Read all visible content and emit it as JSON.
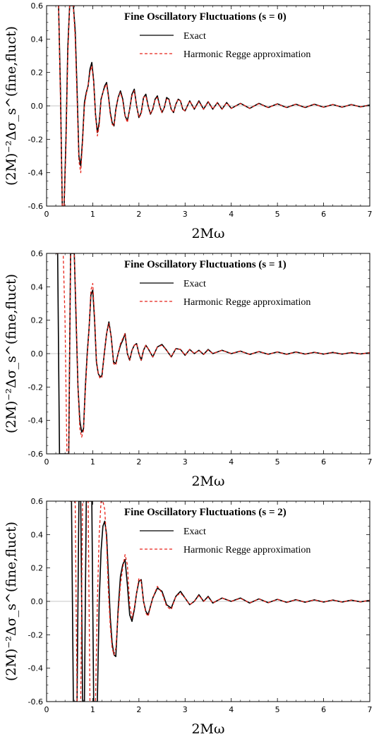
{
  "chart_data": [
    {
      "type": "line",
      "title": "Fine Oscillatory Fluctuations (s = 0)",
      "xlabel": "2Mω",
      "ylabel": "(2M)⁻²Δσ_s^(fine,fluct)",
      "xlim": [
        0,
        7
      ],
      "ylim": [
        -0.6,
        0.6
      ],
      "xticks": [
        "0",
        "1",
        "2",
        "3",
        "4",
        "5",
        "6",
        "7"
      ],
      "yticks": [
        "-0.6",
        "-0.4",
        "-0.2",
        "0.0",
        "0.2",
        "0.4",
        "0.6"
      ],
      "legend_position": "top-right",
      "series": [
        {
          "name": "Exact",
          "color": "#000000",
          "dashed": false,
          "x": [
            0.26,
            0.3,
            0.34,
            0.38,
            0.42,
            0.46,
            0.5,
            0.54,
            0.58,
            0.62,
            0.66,
            0.7,
            0.74,
            0.78,
            0.82,
            0.86,
            0.9,
            0.94,
            0.98,
            1.02,
            1.06,
            1.1,
            1.14,
            1.18,
            1.22,
            1.26,
            1.3,
            1.34,
            1.38,
            1.42,
            1.46,
            1.5,
            1.55,
            1.6,
            1.65,
            1.7,
            1.75,
            1.8,
            1.85,
            1.9,
            1.95,
            2.0,
            2.05,
            2.1,
            2.15,
            2.2,
            2.25,
            2.3,
            2.35,
            2.4,
            2.45,
            2.5,
            2.55,
            2.6,
            2.65,
            2.7,
            2.75,
            2.8,
            2.85,
            2.9,
            2.95,
            3.0,
            3.1,
            3.2,
            3.3,
            3.4,
            3.5,
            3.6,
            3.7,
            3.8,
            3.9,
            4.0,
            4.2,
            4.4,
            4.6,
            4.8,
            5.0,
            5.2,
            5.4,
            5.6,
            5.8,
            6.0,
            6.2,
            6.4,
            6.6,
            6.8,
            7.0
          ],
          "y": [
            0.6,
            0.1,
            -0.6,
            -0.6,
            -0.2,
            0.35,
            0.6,
            0.6,
            0.6,
            0.45,
            0.1,
            -0.3,
            -0.36,
            -0.2,
            0.02,
            0.08,
            0.12,
            0.22,
            0.26,
            0.15,
            -0.05,
            -0.16,
            -0.1,
            0.04,
            0.08,
            0.12,
            0.14,
            0.06,
            -0.04,
            -0.1,
            -0.12,
            -0.02,
            0.05,
            0.09,
            0.04,
            -0.06,
            -0.09,
            -0.02,
            0.07,
            0.1,
            0.0,
            -0.07,
            -0.04,
            0.05,
            0.07,
            0.0,
            -0.05,
            -0.02,
            0.04,
            0.06,
            0.0,
            -0.04,
            -0.01,
            0.05,
            0.04,
            -0.02,
            -0.04,
            0.01,
            0.04,
            0.03,
            -0.02,
            -0.03,
            0.03,
            -0.02,
            0.03,
            -0.02,
            0.025,
            -0.02,
            0.02,
            -0.02,
            0.02,
            -0.015,
            0.015,
            -0.015,
            0.015,
            -0.01,
            0.012,
            -0.01,
            0.01,
            -0.01,
            0.01,
            -0.008,
            0.008,
            -0.008,
            0.008,
            -0.006,
            0.005
          ]
        },
        {
          "name": "Harmonic Regge approximation",
          "color": "#e8231a",
          "dashed": true,
          "x": [
            0.26,
            0.3,
            0.34,
            0.38,
            0.42,
            0.46,
            0.5,
            0.54,
            0.58,
            0.62,
            0.66,
            0.7,
            0.74,
            0.78,
            0.82,
            0.86,
            0.9,
            0.94,
            0.98,
            1.02,
            1.06,
            1.1,
            1.14,
            1.18,
            1.22,
            1.26,
            1.3,
            1.34,
            1.38,
            1.42,
            1.46,
            1.5,
            1.55,
            1.6,
            1.65,
            1.7,
            1.75,
            1.8,
            1.85,
            1.9,
            1.95,
            2.0,
            2.05,
            2.1,
            2.15,
            2.2,
            2.25,
            2.3,
            2.35,
            2.4,
            2.45,
            2.5,
            2.55,
            2.6,
            2.65,
            2.7,
            2.75,
            2.8,
            2.85,
            2.9,
            2.95,
            3.0,
            3.1,
            3.2,
            3.3,
            3.4,
            3.5,
            3.6,
            3.7,
            3.8,
            3.9,
            4.0,
            4.2,
            4.4,
            4.6,
            4.8,
            5.0,
            5.2,
            5.4,
            5.6,
            5.8,
            6.0,
            6.2,
            6.4,
            6.6,
            6.8,
            7.0
          ],
          "y": [
            0.6,
            0.05,
            -0.6,
            -0.6,
            -0.25,
            0.3,
            0.6,
            0.6,
            0.6,
            0.4,
            0.05,
            -0.33,
            -0.4,
            -0.22,
            0.0,
            0.07,
            0.12,
            0.2,
            0.24,
            0.14,
            -0.06,
            -0.18,
            -0.12,
            0.03,
            0.08,
            0.11,
            0.13,
            0.05,
            -0.05,
            -0.11,
            -0.12,
            -0.03,
            0.05,
            0.08,
            0.03,
            -0.06,
            -0.1,
            -0.02,
            0.06,
            0.09,
            0.0,
            -0.07,
            -0.05,
            0.05,
            0.06,
            0.0,
            -0.05,
            -0.02,
            0.04,
            0.05,
            0.0,
            -0.04,
            -0.01,
            0.04,
            0.04,
            -0.02,
            -0.04,
            0.01,
            0.04,
            0.03,
            -0.02,
            -0.03,
            0.03,
            -0.02,
            0.025,
            -0.02,
            0.025,
            -0.02,
            0.02,
            -0.02,
            0.018,
            -0.015,
            0.014,
            -0.014,
            0.013,
            -0.01,
            0.011,
            -0.01,
            0.01,
            -0.009,
            0.009,
            -0.008,
            0.008,
            -0.007,
            0.007,
            -0.006,
            0.005
          ]
        }
      ]
    },
    {
      "type": "line",
      "title": "Fine Oscillatory Fluctuations (s = 1)",
      "xlabel": "2Mω",
      "ylabel": "(2M)⁻²Δσ_s^(fine,fluct)",
      "xlim": [
        0,
        7
      ],
      "ylim": [
        -0.6,
        0.6
      ],
      "xticks": [
        "0",
        "1",
        "2",
        "3",
        "4",
        "5",
        "6",
        "7"
      ],
      "yticks": [
        "-0.6",
        "-0.4",
        "-0.2",
        "0.0",
        "0.2",
        "0.4",
        "0.6"
      ],
      "legend_position": "top-right",
      "series": [
        {
          "name": "Exact",
          "color": "#000000",
          "dashed": false,
          "x": [
            0.2,
            0.24,
            0.28,
            0.32,
            0.36,
            0.4,
            0.44,
            0.48,
            0.52,
            0.56,
            0.6,
            0.64,
            0.68,
            0.72,
            0.76,
            0.8,
            0.84,
            0.88,
            0.92,
            0.96,
            1.0,
            1.04,
            1.08,
            1.12,
            1.16,
            1.2,
            1.25,
            1.3,
            1.35,
            1.4,
            1.45,
            1.5,
            1.55,
            1.6,
            1.65,
            1.7,
            1.75,
            1.8,
            1.85,
            1.9,
            1.95,
            2.0,
            2.05,
            2.1,
            2.15,
            2.2,
            2.3,
            2.4,
            2.5,
            2.6,
            2.7,
            2.8,
            2.9,
            3.0,
            3.1,
            3.2,
            3.3,
            3.4,
            3.5,
            3.6,
            3.8,
            4.0,
            4.2,
            4.4,
            4.6,
            4.8,
            5.0,
            5.2,
            5.4,
            5.6,
            5.8,
            6.0,
            6.2,
            6.4,
            6.6,
            6.8,
            7.0
          ],
          "y": [
            0.6,
            0.6,
            -0.6,
            -0.6,
            -0.6,
            -0.6,
            -0.6,
            -0.6,
            0.6,
            0.6,
            0.6,
            0.2,
            -0.2,
            -0.4,
            -0.47,
            -0.45,
            -0.2,
            0.0,
            0.15,
            0.35,
            0.38,
            0.2,
            -0.05,
            -0.12,
            -0.14,
            -0.13,
            0.0,
            0.12,
            0.19,
            0.1,
            -0.05,
            -0.06,
            0.0,
            0.05,
            0.08,
            0.12,
            0.0,
            -0.04,
            0.02,
            0.05,
            0.06,
            0.0,
            -0.04,
            0.02,
            0.05,
            0.03,
            -0.02,
            0.04,
            0.055,
            0.02,
            -0.02,
            0.03,
            0.025,
            -0.01,
            0.025,
            0.0,
            0.02,
            -0.005,
            0.025,
            0.0,
            0.02,
            0.0,
            0.015,
            -0.005,
            0.012,
            -0.004,
            0.01,
            -0.004,
            0.01,
            -0.003,
            0.008,
            -0.003,
            0.007,
            -0.003,
            0.006,
            -0.002,
            0.005
          ]
        },
        {
          "name": "Harmonic Regge approximation",
          "color": "#e8231a",
          "dashed": true,
          "x": [
            0.2,
            0.24,
            0.28,
            0.32,
            0.36,
            0.4,
            0.44,
            0.48,
            0.52,
            0.56,
            0.6,
            0.64,
            0.68,
            0.72,
            0.76,
            0.8,
            0.84,
            0.88,
            0.92,
            0.96,
            1.0,
            1.04,
            1.08,
            1.12,
            1.16,
            1.2,
            1.25,
            1.3,
            1.35,
            1.4,
            1.45,
            1.5,
            1.55,
            1.6,
            1.65,
            1.7,
            1.75,
            1.8,
            1.85,
            1.9,
            1.95,
            2.0,
            2.05,
            2.1,
            2.15,
            2.2,
            2.3,
            2.4,
            2.5,
            2.6,
            2.7,
            2.8,
            2.9,
            3.0,
            3.1,
            3.2,
            3.3,
            3.4,
            3.5,
            3.6,
            3.8,
            4.0,
            4.2,
            4.4,
            4.6,
            4.8,
            5.0,
            5.2,
            5.4,
            5.6,
            5.8,
            6.0,
            6.2,
            6.4,
            6.6,
            6.8,
            7.0
          ],
          "y": [
            0.6,
            0.6,
            0.6,
            0.6,
            0.6,
            0.2,
            -0.6,
            -0.6,
            0.6,
            0.6,
            0.6,
            0.25,
            -0.2,
            -0.45,
            -0.5,
            -0.46,
            -0.22,
            -0.02,
            0.14,
            0.38,
            0.42,
            0.22,
            -0.04,
            -0.12,
            -0.15,
            -0.14,
            0.0,
            0.12,
            0.18,
            0.1,
            -0.06,
            -0.07,
            0.0,
            0.06,
            0.09,
            0.12,
            0.0,
            -0.04,
            0.02,
            0.05,
            0.06,
            0.0,
            -0.04,
            0.02,
            0.05,
            0.03,
            -0.02,
            0.04,
            0.05,
            0.02,
            -0.02,
            0.03,
            0.025,
            -0.01,
            0.025,
            0.0,
            0.02,
            -0.005,
            0.022,
            0.0,
            0.02,
            0.0,
            0.015,
            -0.005,
            0.012,
            -0.004,
            0.01,
            -0.004,
            0.009,
            -0.003,
            0.008,
            -0.003,
            0.007,
            -0.003,
            0.006,
            -0.002,
            0.005
          ]
        }
      ]
    },
    {
      "type": "line",
      "title": "Fine Oscillatory Fluctuations (s = 2)",
      "xlabel": "2Mω",
      "ylabel": "(2M)⁻²Δσ_s^(fine,fluct)",
      "xlim": [
        0,
        7
      ],
      "ylim": [
        -0.6,
        0.6
      ],
      "xticks": [
        "0",
        "1",
        "2",
        "3",
        "4",
        "5",
        "6",
        "7"
      ],
      "yticks": [
        "-0.6",
        "-0.4",
        "-0.2",
        "0.0",
        "0.2",
        "0.4",
        "0.6"
      ],
      "legend_position": "top-right",
      "series": [
        {
          "name": "Exact",
          "color": "#000000",
          "dashed": false,
          "x": [
            0.5,
            0.54,
            0.58,
            0.62,
            0.66,
            0.7,
            0.74,
            0.78,
            0.82,
            0.86,
            0.9,
            0.94,
            0.98,
            1.02,
            1.06,
            1.1,
            1.14,
            1.18,
            1.22,
            1.26,
            1.3,
            1.34,
            1.38,
            1.42,
            1.46,
            1.5,
            1.55,
            1.6,
            1.65,
            1.7,
            1.75,
            1.8,
            1.85,
            1.9,
            1.95,
            2.0,
            2.05,
            2.1,
            2.15,
            2.2,
            2.3,
            2.4,
            2.5,
            2.6,
            2.7,
            2.8,
            2.9,
            3.0,
            3.1,
            3.2,
            3.3,
            3.4,
            3.5,
            3.6,
            3.8,
            4.0,
            4.2,
            4.4,
            4.6,
            4.8,
            5.0,
            5.2,
            5.4,
            5.6,
            5.8,
            6.0,
            6.2,
            6.4,
            6.6,
            6.8,
            7.0
          ],
          "y": [
            0.6,
            0.6,
            -0.6,
            -0.6,
            -0.6,
            0.6,
            0.6,
            -0.6,
            -0.6,
            0.6,
            0.6,
            0.6,
            0.6,
            -0.6,
            -0.6,
            -0.6,
            0.0,
            0.3,
            0.45,
            0.48,
            0.4,
            0.15,
            -0.1,
            -0.25,
            -0.32,
            -0.33,
            -0.05,
            0.15,
            0.22,
            0.25,
            0.1,
            -0.08,
            -0.12,
            -0.05,
            0.05,
            0.12,
            0.13,
            0.0,
            -0.06,
            -0.08,
            0.02,
            0.08,
            0.06,
            -0.02,
            -0.04,
            0.03,
            0.06,
            0.02,
            -0.02,
            0.0,
            0.04,
            0.0,
            0.03,
            -0.01,
            0.02,
            0.0,
            0.02,
            -0.01,
            0.015,
            -0.008,
            0.012,
            -0.006,
            0.01,
            -0.005,
            0.009,
            -0.004,
            0.008,
            -0.004,
            0.007,
            -0.003,
            0.006
          ]
        },
        {
          "name": "Harmonic Regge approximation",
          "color": "#e8231a",
          "dashed": true,
          "x": [
            0.5,
            0.54,
            0.58,
            0.62,
            0.66,
            0.7,
            0.74,
            0.78,
            0.82,
            0.86,
            0.9,
            0.94,
            0.98,
            1.02,
            1.06,
            1.1,
            1.14,
            1.18,
            1.22,
            1.26,
            1.3,
            1.34,
            1.38,
            1.42,
            1.46,
            1.5,
            1.55,
            1.6,
            1.65,
            1.7,
            1.75,
            1.8,
            1.85,
            1.9,
            1.95,
            2.0,
            2.05,
            2.1,
            2.15,
            2.2,
            2.3,
            2.4,
            2.5,
            2.6,
            2.7,
            2.8,
            2.9,
            3.0,
            3.1,
            3.2,
            3.3,
            3.4,
            3.5,
            3.6,
            3.8,
            4.0,
            4.2,
            4.4,
            4.6,
            4.8,
            5.0,
            5.2,
            5.4,
            5.6,
            5.8,
            6.0,
            6.2,
            6.4,
            6.6,
            6.8,
            7.0
          ],
          "y": [
            0.6,
            0.6,
            0.6,
            0.6,
            -0.6,
            -0.6,
            -0.6,
            0.6,
            0.6,
            0.6,
            0.6,
            -0.6,
            -0.6,
            -0.6,
            -0.6,
            0.0,
            0.4,
            0.6,
            0.6,
            0.55,
            0.35,
            0.05,
            -0.15,
            -0.28,
            -0.32,
            -0.28,
            -0.08,
            0.1,
            0.2,
            0.28,
            0.22,
            -0.02,
            -0.1,
            -0.04,
            0.05,
            0.14,
            0.12,
            0.0,
            -0.07,
            -0.09,
            0.02,
            0.09,
            0.05,
            -0.03,
            -0.05,
            0.03,
            0.05,
            0.02,
            -0.02,
            0.0,
            0.035,
            0.0,
            0.025,
            -0.01,
            0.02,
            0.0,
            0.018,
            -0.009,
            0.014,
            -0.008,
            0.012,
            -0.006,
            0.01,
            -0.005,
            0.009,
            -0.004,
            0.008,
            -0.004,
            0.007,
            -0.003,
            0.006
          ]
        }
      ]
    }
  ]
}
